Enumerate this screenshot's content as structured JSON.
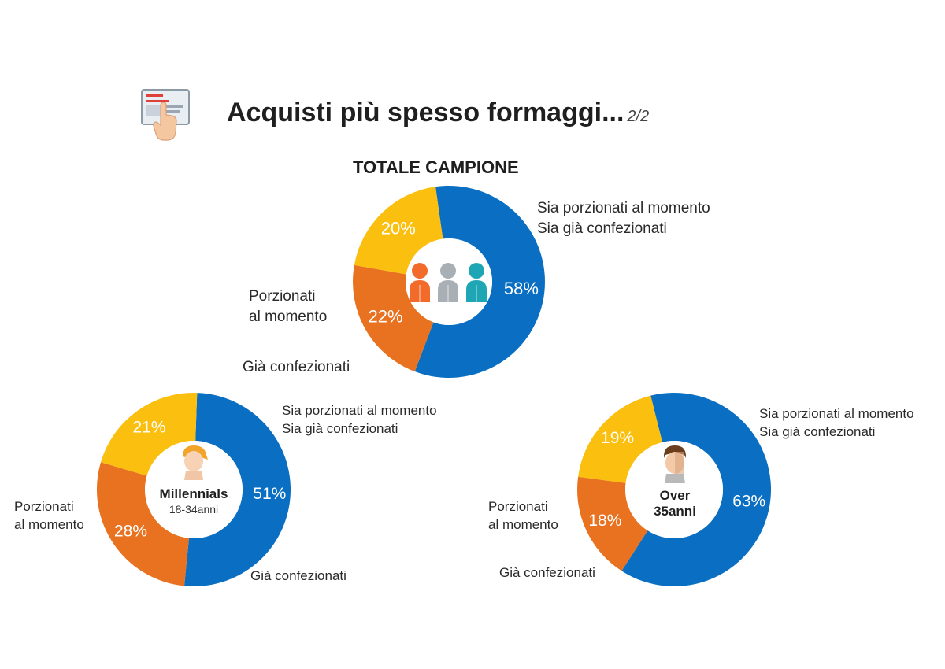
{
  "header": {
    "title": "Acquisti più spesso formaggi...",
    "page_indicator": "2/2",
    "icon": "touch-screen-icon"
  },
  "colors": {
    "both": "#0a6fc2",
    "portioned": "#fbbf0f",
    "packaged": "#e8721f"
  },
  "chart_data": [
    {
      "type": "pie",
      "title": "TOTALE CAMPIONE",
      "center_icon": "people-group-icon",
      "categories": [
        "Sia porzionati al momento\nSia già confezionati",
        "Già confezionati",
        "Porzionati\nal momento"
      ],
      "values": [
        58,
        22,
        20
      ],
      "value_labels": [
        "58%",
        "22%",
        "20%"
      ]
    },
    {
      "type": "pie",
      "title": "",
      "center_label": "Millennials",
      "center_sublabel": "18-34anni",
      "center_icon": "young-person-icon",
      "categories": [
        "Sia porzionati al momento\nSia già confezionati",
        "Già confezionati",
        "Porzionati\nal momento"
      ],
      "values": [
        51,
        28,
        21
      ],
      "value_labels": [
        "51%",
        "28%",
        "21%"
      ]
    },
    {
      "type": "pie",
      "title": "",
      "center_label": "Over\n35anni",
      "center_icon": "adult-person-icon",
      "categories": [
        "Sia porzionati al momento\nSia già confezionati",
        "Già confezionati",
        "Porzionati\nal momento"
      ],
      "values": [
        63,
        18,
        19
      ],
      "value_labels": [
        "63%",
        "18%",
        "19%"
      ]
    }
  ]
}
